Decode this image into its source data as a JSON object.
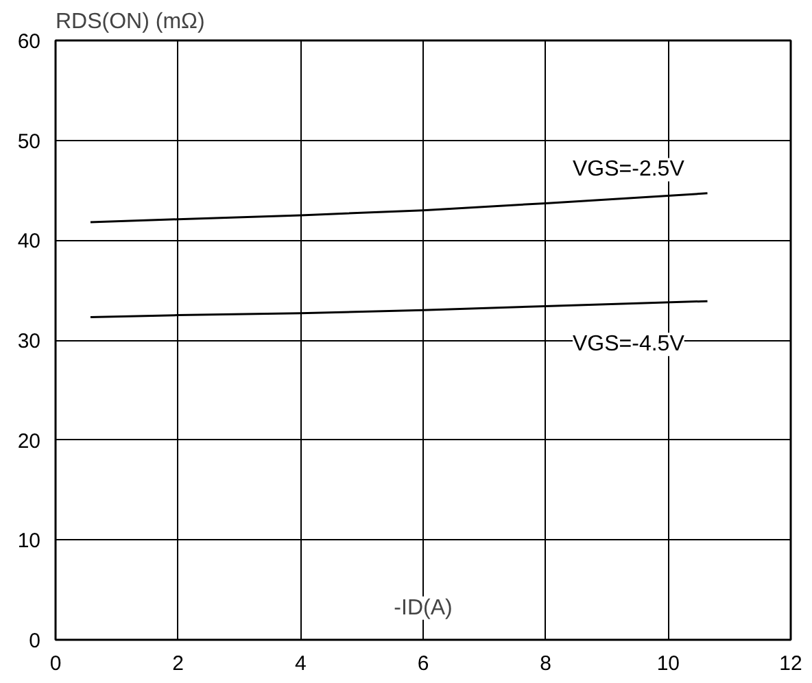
{
  "chart_data": {
    "type": "line",
    "xlabel": "-ID(A)",
    "ylabel": "RDS(ON) (mΩ)",
    "xlim": [
      0,
      12
    ],
    "ylim": [
      0,
      60
    ],
    "xticks": [
      0,
      2,
      4,
      6,
      8,
      10,
      12
    ],
    "yticks": [
      0,
      10,
      20,
      30,
      40,
      50,
      60
    ],
    "grid": true,
    "marker": "none",
    "line_style": "solid",
    "series": [
      {
        "name": "VGS=-2.5V",
        "color": "#000000",
        "x": [
          0.57,
          2,
          4,
          6,
          8,
          10.64
        ],
        "values": [
          41.8,
          42.1,
          42.5,
          43.0,
          43.7,
          44.7
        ]
      },
      {
        "name": "VGS=-4.5V",
        "color": "#000000",
        "x": [
          0.57,
          2,
          4,
          6,
          8,
          10.64
        ],
        "values": [
          32.3,
          32.5,
          32.7,
          33.0,
          33.4,
          33.9
        ]
      }
    ]
  }
}
